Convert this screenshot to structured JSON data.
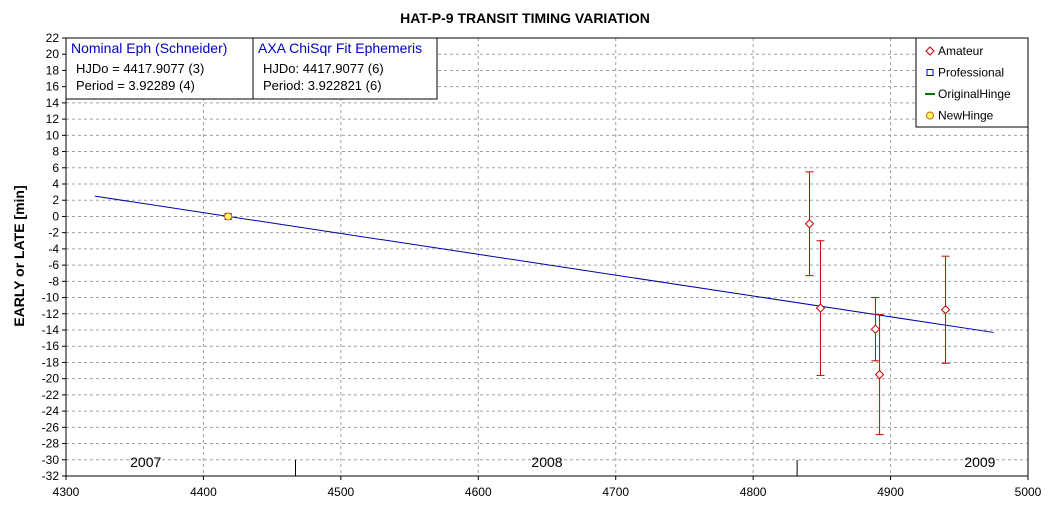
{
  "chart_data": {
    "type": "scatter",
    "title": "HAT-P-9 TRANSIT TIMING VARIATION",
    "xlabel": "",
    "ylabel": "EARLY or LATE [min]",
    "xlim": [
      4300,
      5000
    ],
    "ylim": [
      -32,
      22
    ],
    "x_ticks": [
      "4300",
      "4400",
      "4500",
      "4600",
      "4700",
      "4800",
      "4900",
      "5000"
    ],
    "y_ticks": [
      "22",
      "20",
      "18",
      "16",
      "14",
      "12",
      "10",
      "8",
      "6",
      "4",
      "2",
      "0",
      "-2",
      "-4",
      "-6",
      "-8",
      "-10",
      "-12",
      "-14",
      "-16",
      "-18",
      "-20",
      "-22",
      "-24",
      "-26",
      "-28",
      "-30",
      "-32"
    ],
    "grid": true,
    "legend_position": "top-right",
    "year_labels": [
      {
        "text": "2007",
        "x": 4358
      },
      {
        "text": "2008",
        "x": 4650
      },
      {
        "text": "2009",
        "x": 4965
      }
    ],
    "year_dividers": [
      4467,
      4832
    ],
    "info_boxes": [
      {
        "title": "Nominal Eph (Schneider)",
        "lines": [
          "HJDo = 4417.9077 (3)",
          "Period = 3.92289 (4)"
        ]
      },
      {
        "title": "AXA ChiSqr Fit Ephemeris",
        "lines": [
          "HJDo:  4417.9077 (6)",
          "Period: 3.922821 (6)"
        ]
      }
    ],
    "series": [
      {
        "name": "Amateur",
        "marker": "diamond",
        "color": "#cc0000",
        "points": [
          {
            "x": 4841,
            "y": -0.9,
            "err": 6.4
          },
          {
            "x": 4849,
            "y": -11.3,
            "err": 8.3
          },
          {
            "x": 4889,
            "y": -13.9,
            "err": 3.9
          },
          {
            "x": 4892,
            "y": -19.5,
            "err": 7.4
          },
          {
            "x": 4940,
            "y": -11.5,
            "err": 6.6
          }
        ]
      },
      {
        "name": "Professional",
        "marker": "square",
        "color": "#0000cc",
        "points": [
          {
            "x": 4418,
            "y": 0
          }
        ]
      },
      {
        "name": "OriginalHinge",
        "marker": "line",
        "color": "#007700",
        "points": []
      },
      {
        "name": "NewHinge",
        "marker": "circle",
        "color": "#cc6600",
        "fill": "#ffff66",
        "points": [
          {
            "x": 4418,
            "y": 0
          }
        ]
      }
    ],
    "fit_line": {
      "color": "#0000aa",
      "x": [
        4321,
        4975
      ],
      "y": [
        2.5,
        -14.3
      ]
    }
  }
}
